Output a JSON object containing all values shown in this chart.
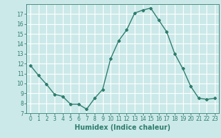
{
  "x": [
    0,
    1,
    2,
    3,
    4,
    5,
    6,
    7,
    8,
    9,
    10,
    11,
    12,
    13,
    14,
    15,
    16,
    17,
    18,
    19,
    20,
    21,
    22,
    23
  ],
  "y": [
    11.8,
    10.8,
    9.9,
    8.9,
    8.7,
    7.9,
    7.9,
    7.4,
    8.5,
    9.4,
    12.5,
    14.3,
    15.4,
    17.1,
    17.4,
    17.6,
    16.4,
    15.2,
    13.0,
    11.5,
    9.7,
    8.5,
    8.4,
    8.5
  ],
  "line_color": "#2e7d6e",
  "marker": "D",
  "marker_size": 2,
  "background_color": "#cce9e9",
  "grid_color": "#ffffff",
  "xlabel": "Humidex (Indice chaleur)",
  "ylim": [
    7,
    18
  ],
  "xlim_min": -0.5,
  "xlim_max": 23.5,
  "yticks": [
    7,
    8,
    9,
    10,
    11,
    12,
    13,
    14,
    15,
    16,
    17
  ],
  "xticks": [
    0,
    1,
    2,
    3,
    4,
    5,
    6,
    7,
    8,
    9,
    10,
    11,
    12,
    13,
    14,
    15,
    16,
    17,
    18,
    19,
    20,
    21,
    22,
    23
  ],
  "tick_label_fontsize": 5.5,
  "xlabel_fontsize": 7.0,
  "line_width": 1.0
}
